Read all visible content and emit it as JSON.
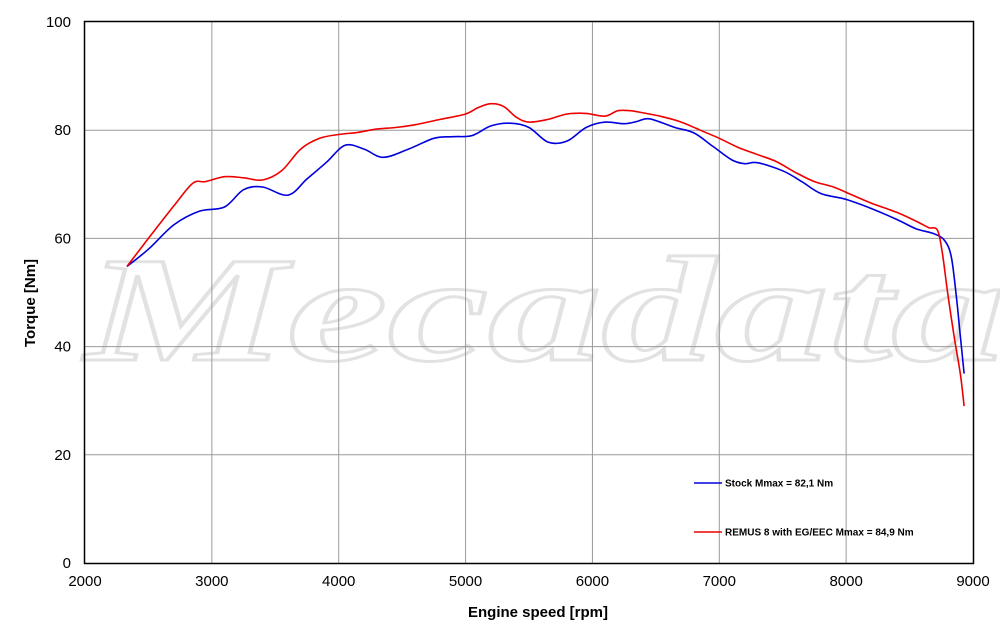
{
  "watermark": "Mecadata",
  "chart_data": {
    "type": "line",
    "title": "",
    "xlabel": "Engine speed [rpm]",
    "ylabel": "Torque [Nm]",
    "xlim": [
      2000,
      9000
    ],
    "ylim": [
      0,
      100
    ],
    "xticks": [
      "2000",
      "3000",
      "4000",
      "5000",
      "6000",
      "7000",
      "8000",
      "9000"
    ],
    "yticks": [
      "0",
      "20",
      "40",
      "60",
      "80",
      "100"
    ],
    "grid": true,
    "legend_position": "bottom-right",
    "series": [
      {
        "name": "Stock Mmax = 82,1 Nm",
        "color": "#0000dd",
        "x": [
          2330,
          2500,
          2700,
          2900,
          3100,
          3250,
          3400,
          3600,
          3750,
          3900,
          4050,
          4200,
          4350,
          4550,
          4750,
          4900,
          5050,
          5200,
          5350,
          5500,
          5650,
          5800,
          5950,
          6100,
          6250,
          6350,
          6450,
          6650,
          6800,
          6950,
          7100,
          7200,
          7300,
          7500,
          7650,
          7800,
          8000,
          8200,
          8400,
          8550,
          8700,
          8780,
          8830,
          8870,
          8900,
          8930
        ],
        "y": [
          54.8,
          58,
          62.5,
          65,
          65.8,
          69,
          69.5,
          68,
          71,
          74,
          77.2,
          76.5,
          75,
          76.5,
          78.5,
          78.8,
          79,
          80.8,
          81.3,
          80.5,
          77.8,
          78,
          80.5,
          81.5,
          81.2,
          81.6,
          82.1,
          80.5,
          79.5,
          77,
          74.5,
          73.8,
          74,
          72.5,
          70.5,
          68.3,
          67.2,
          65.5,
          63.5,
          61.8,
          60.8,
          59.5,
          56.5,
          49,
          42,
          35
        ]
      },
      {
        "name": "REMUS 8 with EG/EEC Mmax = 84,9 Nm",
        "color": "#ee0000",
        "x": [
          2330,
          2500,
          2700,
          2850,
          2950,
          3100,
          3250,
          3400,
          3550,
          3700,
          3850,
          4000,
          4150,
          4300,
          4450,
          4600,
          4800,
          5000,
          5100,
          5200,
          5300,
          5400,
          5500,
          5650,
          5800,
          5950,
          6100,
          6200,
          6300,
          6400,
          6550,
          6700,
          6850,
          7000,
          7150,
          7300,
          7450,
          7600,
          7750,
          7900,
          8050,
          8200,
          8400,
          8550,
          8650,
          8720,
          8760,
          8800,
          8850,
          8900,
          8930
        ],
        "y": [
          54.8,
          60,
          66,
          70.2,
          70.5,
          71.4,
          71.2,
          70.8,
          72.5,
          76.5,
          78.5,
          79.2,
          79.6,
          80.2,
          80.5,
          81,
          82,
          83,
          84.2,
          84.9,
          84.4,
          82.4,
          81.5,
          82,
          83,
          83.1,
          82.6,
          83.6,
          83.6,
          83.2,
          82.5,
          81.5,
          80,
          78.5,
          76.8,
          75.5,
          74.2,
          72.2,
          70.5,
          69.5,
          68,
          66.5,
          64.8,
          63.2,
          62,
          61.5,
          57,
          50,
          42,
          35,
          29
        ]
      }
    ]
  }
}
